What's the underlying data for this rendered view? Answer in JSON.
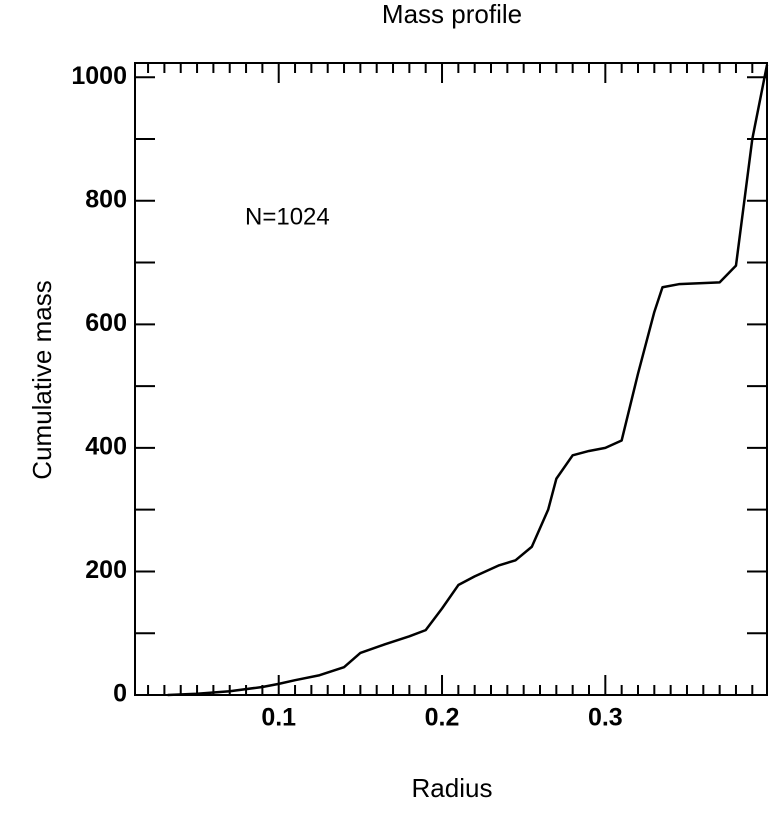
{
  "chart_data": {
    "type": "line",
    "title": "Mass profile",
    "xlabel": "Radius",
    "ylabel": "Cumulative mass",
    "annotation": "N=1024",
    "x": [
      0.032,
      0.05,
      0.07,
      0.09,
      0.1,
      0.11,
      0.125,
      0.14,
      0.15,
      0.165,
      0.18,
      0.19,
      0.2,
      0.21,
      0.22,
      0.235,
      0.245,
      0.255,
      0.265,
      0.27,
      0.28,
      0.29,
      0.3,
      0.31,
      0.32,
      0.33,
      0.335,
      0.345,
      0.37,
      0.38,
      0.39,
      0.399
    ],
    "series": [
      {
        "color": "#000000",
        "values": [
          0,
          2,
          6,
          13,
          18,
          24,
          32,
          45,
          68,
          82,
          95,
          105,
          140,
          178,
          192,
          210,
          218,
          240,
          300,
          350,
          388,
          395,
          400,
          412,
          520,
          620,
          660,
          665,
          668,
          695,
          900,
          1020
        ]
      }
    ],
    "xlim": [
      0.012,
      0.399
    ],
    "ylim": [
      0,
      1023
    ],
    "xticks": [
      0.1,
      0.2,
      0.3
    ],
    "xminorticks": [
      0.02,
      0.03,
      0.04,
      0.05,
      0.06,
      0.07,
      0.08,
      0.09,
      0.11,
      0.12,
      0.13,
      0.14,
      0.15,
      0.16,
      0.17,
      0.18,
      0.19,
      0.21,
      0.22,
      0.23,
      0.24,
      0.25,
      0.26,
      0.27,
      0.28,
      0.29,
      0.31,
      0.32,
      0.33,
      0.34,
      0.35,
      0.36,
      0.37,
      0.38,
      0.39
    ],
    "yticks": [
      0,
      200,
      400,
      600,
      800,
      1000
    ],
    "yminorticks": [
      100,
      300,
      500,
      700,
      900
    ]
  }
}
